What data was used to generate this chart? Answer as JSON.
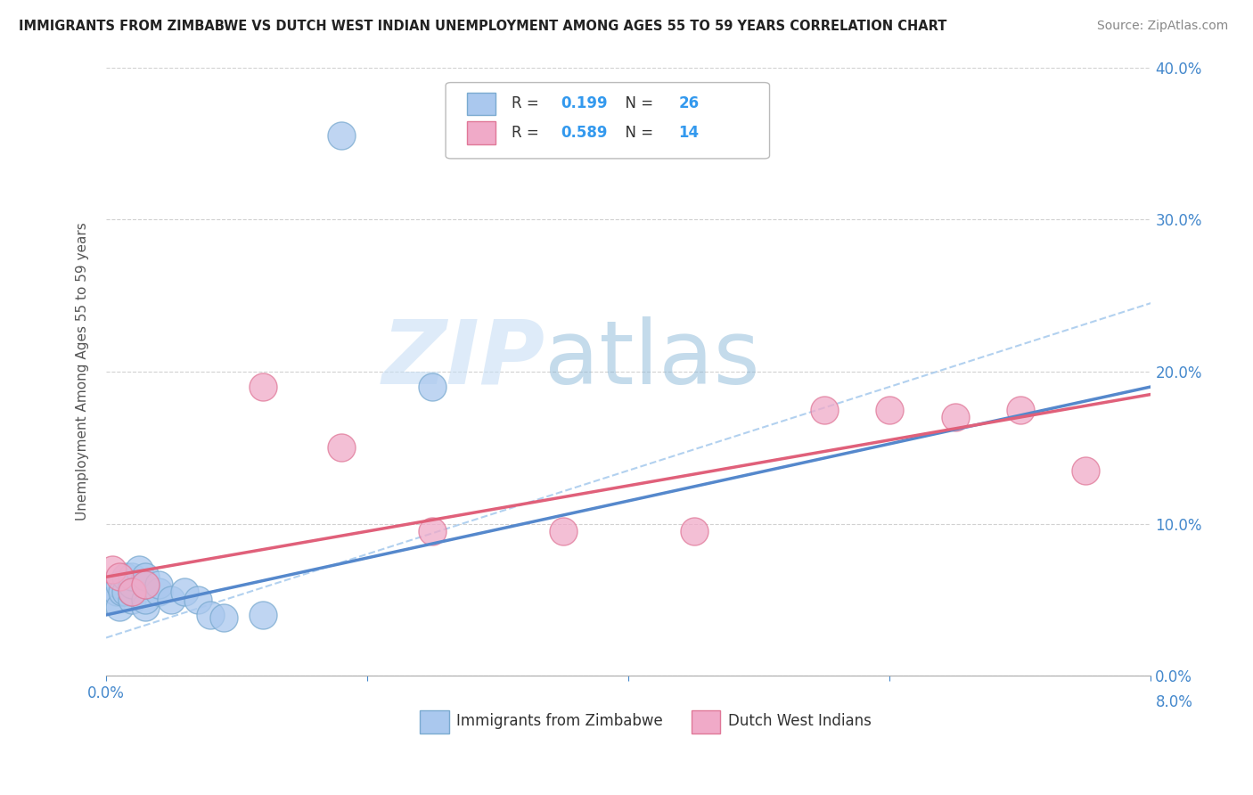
{
  "title": "IMMIGRANTS FROM ZIMBABWE VS DUTCH WEST INDIAN UNEMPLOYMENT AMONG AGES 55 TO 59 YEARS CORRELATION CHART",
  "source": "Source: ZipAtlas.com",
  "ylabel": "Unemployment Among Ages 55 to 59 years",
  "xlabel_legend1": "Immigrants from Zimbabwe",
  "xlabel_legend2": "Dutch West Indians",
  "legend_r1_val": "0.199",
  "legend_n1_val": "26",
  "legend_r2_val": "0.589",
  "legend_n2_val": "14",
  "xlim": [
    0.0,
    0.08
  ],
  "ylim": [
    0.0,
    0.4
  ],
  "xticks": [
    0.0,
    0.02,
    0.04,
    0.06,
    0.08
  ],
  "yticks": [
    0.0,
    0.1,
    0.2,
    0.3,
    0.4
  ],
  "xtick_labels_left": [
    "0.0%",
    "",
    "",
    "",
    ""
  ],
  "xtick_labels_right": [
    "",
    "",
    "",
    "",
    "8.0%"
  ],
  "ytick_labels_right": [
    "0.0%",
    "10.0%",
    "20.0%",
    "30.0%",
    "40.0%"
  ],
  "color_zimbabwe_fill": "#aac8ee",
  "color_zimbabwe_edge": "#7aaad0",
  "color_dutch_fill": "#f0aac8",
  "color_dutch_edge": "#e07898",
  "color_line_zimbabwe": "#5588cc",
  "color_line_dutch": "#e0607a",
  "color_line_dashed": "#aaccee",
  "background_color": "#ffffff",
  "watermark_zip": "ZIP",
  "watermark_atlas": "atlas",
  "zimbabwe_x": [
    0.0005,
    0.0008,
    0.001,
    0.001,
    0.0012,
    0.0015,
    0.0015,
    0.002,
    0.002,
    0.002,
    0.002,
    0.0025,
    0.003,
    0.003,
    0.003,
    0.003,
    0.004,
    0.004,
    0.005,
    0.006,
    0.007,
    0.008,
    0.009,
    0.012,
    0.018,
    0.025
  ],
  "zimbabwe_y": [
    0.05,
    0.055,
    0.045,
    0.06,
    0.055,
    0.055,
    0.065,
    0.05,
    0.055,
    0.06,
    0.065,
    0.07,
    0.045,
    0.05,
    0.06,
    0.065,
    0.055,
    0.06,
    0.05,
    0.055,
    0.05,
    0.04,
    0.038,
    0.04,
    0.355,
    0.19
  ],
  "dutch_x": [
    0.0005,
    0.001,
    0.002,
    0.003,
    0.012,
    0.018,
    0.025,
    0.035,
    0.045,
    0.055,
    0.06,
    0.065,
    0.07,
    0.075
  ],
  "dutch_y": [
    0.07,
    0.065,
    0.055,
    0.06,
    0.19,
    0.15,
    0.095,
    0.095,
    0.095,
    0.175,
    0.175,
    0.17,
    0.175,
    0.135
  ],
  "zim_line_x0": 0.0,
  "zim_line_x1": 0.08,
  "zim_line_y0": 0.04,
  "zim_line_y1": 0.19,
  "dutch_line_x0": 0.0,
  "dutch_line_x1": 0.08,
  "dutch_line_y0": 0.065,
  "dutch_line_y1": 0.185,
  "dashed_line_x0": 0.0,
  "dashed_line_x1": 0.08,
  "dashed_line_y0": 0.025,
  "dashed_line_y1": 0.245
}
